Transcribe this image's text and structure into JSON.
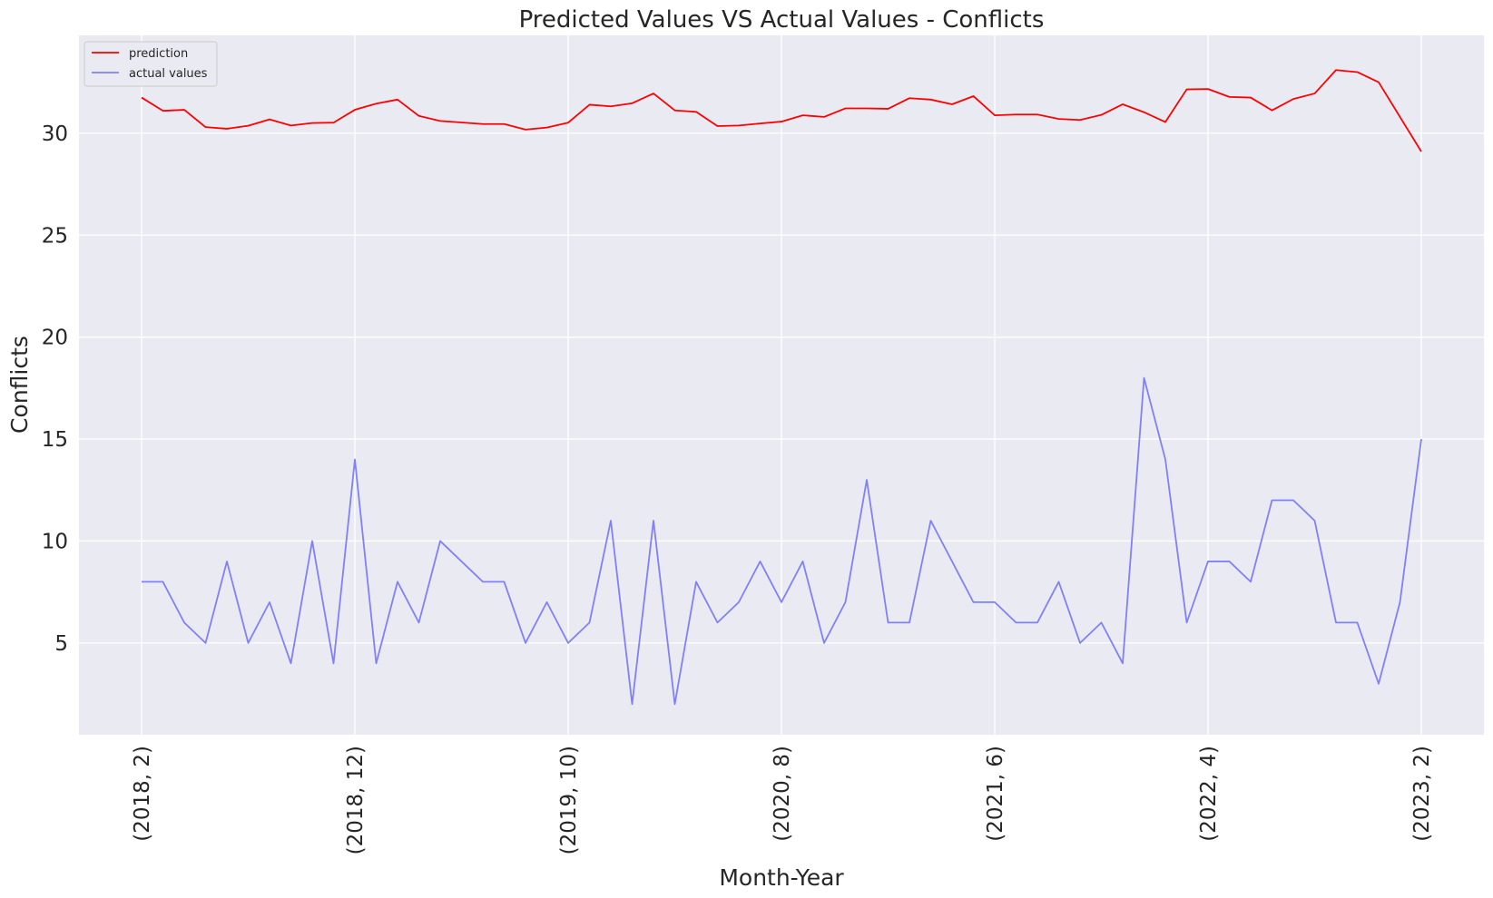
{
  "chart_data": {
    "type": "line",
    "title": "Predicted Values VS Actual Values - Conflicts",
    "xlabel": "Month-Year",
    "ylabel": "Conflicts",
    "x_tick_labels": [
      "(2018, 2)",
      "(2018, 12)",
      "(2019, 10)",
      "(2020, 8)",
      "(2021, 6)",
      "(2022, 4)",
      "(2023, 2)"
    ],
    "x_tick_indices": [
      0,
      10,
      20,
      30,
      40,
      50,
      60
    ],
    "y_ticks": [
      5,
      10,
      15,
      20,
      25,
      30
    ],
    "ylim": [
      0.5,
      34.8
    ],
    "grid": true,
    "legend_position": "top-left",
    "series": [
      {
        "name": "prediction",
        "color": "#ff0000",
        "values": [
          31.75,
          31.1,
          31.15,
          30.3,
          30.22,
          30.37,
          30.68,
          30.38,
          30.5,
          30.52,
          31.15,
          31.45,
          31.65,
          30.85,
          30.6,
          30.53,
          30.45,
          30.45,
          30.18,
          30.28,
          30.52,
          31.4,
          31.32,
          31.47,
          31.95,
          31.12,
          31.05,
          30.35,
          30.38,
          30.48,
          30.57,
          30.88,
          30.8,
          31.22,
          31.22,
          31.2,
          31.72,
          31.65,
          31.42,
          31.82,
          30.88,
          30.92,
          30.92,
          30.7,
          30.65,
          30.9,
          31.42,
          31.03,
          30.55,
          32.15,
          32.17,
          31.78,
          31.75,
          31.12,
          31.68,
          31.95,
          33.1,
          33.0,
          32.5,
          30.8,
          29.1
        ]
      },
      {
        "name": "actual values",
        "color": "#8080f8",
        "values": [
          8,
          8,
          6,
          5,
          9,
          5,
          7,
          4,
          10,
          4,
          14,
          4,
          8,
          6,
          10,
          9,
          8,
          8,
          5,
          7,
          5,
          6,
          11,
          2,
          11,
          2,
          8,
          6,
          7,
          9,
          7,
          9,
          5,
          7,
          13,
          6,
          6,
          11,
          9,
          7,
          7,
          6,
          6,
          8,
          5,
          6,
          4,
          18,
          14,
          6,
          9,
          9,
          8,
          12,
          12,
          11,
          6,
          6,
          3,
          7,
          15
        ]
      }
    ]
  }
}
